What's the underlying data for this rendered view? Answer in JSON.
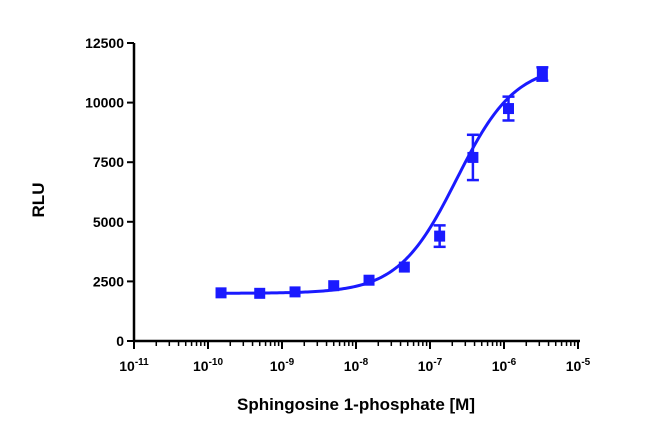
{
  "chart_data": {
    "type": "scatter",
    "title": "",
    "xlabel": "Sphingosine 1-phosphate [M]",
    "ylabel": "RLU",
    "x_scale": "log",
    "xlim": [
      1e-11,
      1e-05
    ],
    "ylim": [
      0,
      12500
    ],
    "x_ticks": [
      {
        "value": 1e-11,
        "base": "10",
        "exp": "-11"
      },
      {
        "value": 1e-10,
        "base": "10",
        "exp": "-10"
      },
      {
        "value": 1e-09,
        "base": "10",
        "exp": "-9"
      },
      {
        "value": 1e-08,
        "base": "10",
        "exp": "-8"
      },
      {
        "value": 1e-07,
        "base": "10",
        "exp": "-7"
      },
      {
        "value": 1e-06,
        "base": "10",
        "exp": "-6"
      },
      {
        "value": 1e-05,
        "base": "10",
        "exp": "-5"
      }
    ],
    "y_ticks": [
      {
        "value": 0,
        "label": "0"
      },
      {
        "value": 2500,
        "label": "2500"
      },
      {
        "value": 5000,
        "label": "5000"
      },
      {
        "value": 7500,
        "label": "7500"
      },
      {
        "value": 10000,
        "label": "10000"
      },
      {
        "value": 12500,
        "label": "12500"
      }
    ],
    "grid": false,
    "legend": "none",
    "series": [
      {
        "color": "#1a1aff",
        "marker": "square",
        "points": [
          {
            "x": 1.5e-10,
            "y": 2020,
            "err": 0
          },
          {
            "x": 5e-10,
            "y": 2000,
            "err": 0
          },
          {
            "x": 1.5e-09,
            "y": 2060,
            "err": 0
          },
          {
            "x": 5e-09,
            "y": 2320,
            "err": 0
          },
          {
            "x": 1.5e-08,
            "y": 2550,
            "err": 0
          },
          {
            "x": 4.5e-08,
            "y": 3100,
            "err": 0
          },
          {
            "x": 1.35e-07,
            "y": 4400,
            "err": 450
          },
          {
            "x": 3.8e-07,
            "y": 7700,
            "err": 950
          },
          {
            "x": 1.15e-06,
            "y": 9750,
            "err": 500
          },
          {
            "x": 3.3e-06,
            "y": 11200,
            "err": 280
          }
        ],
        "fit": {
          "model": "four-parameter logistic",
          "bottom": 2000,
          "top": 11600,
          "ec50": 2.3e-07,
          "hill": 1.1
        }
      }
    ]
  }
}
